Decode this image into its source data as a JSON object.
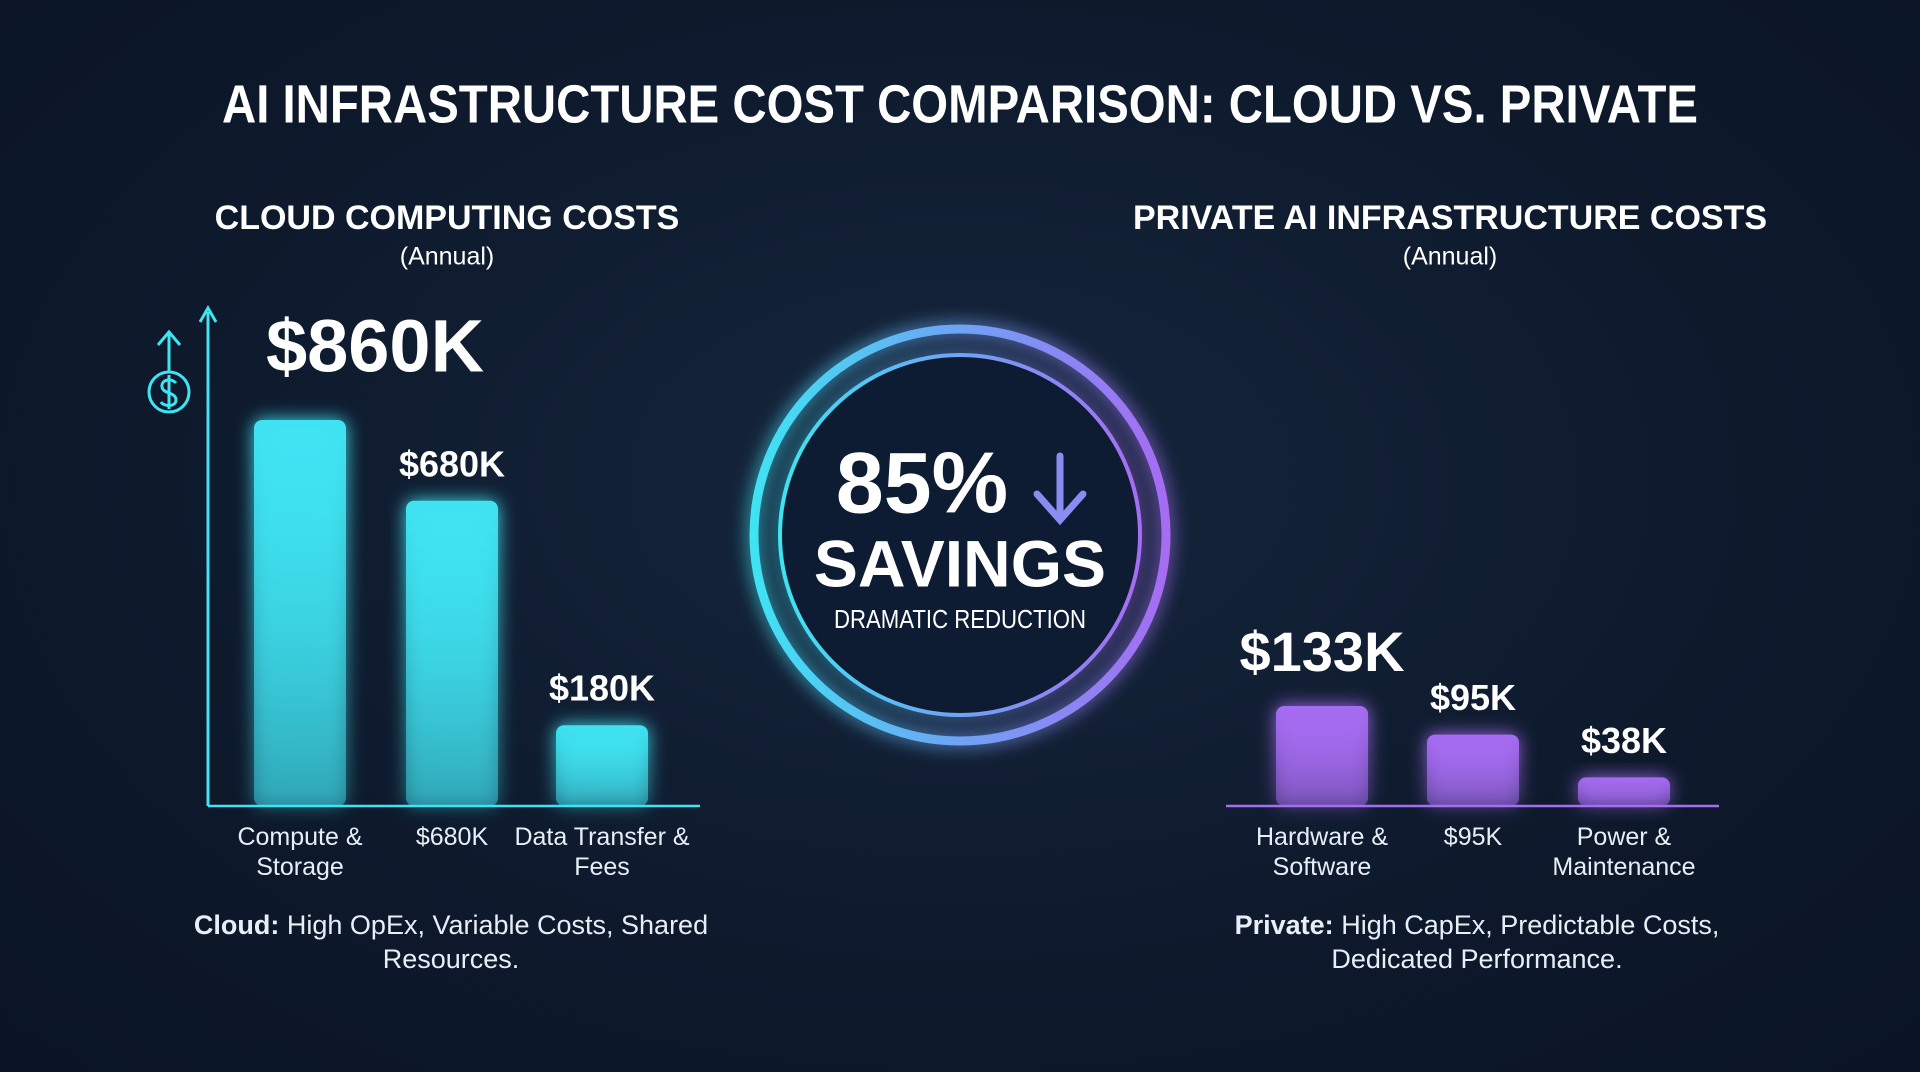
{
  "title": "AI INFRASTRUCTURE COST COMPARISON: CLOUD VS. PRIVATE",
  "badge": {
    "value_label": "85%",
    "headline": "SAVINGS",
    "caption": "DRAMATIC REDUCTION"
  },
  "chart_data": [
    {
      "type": "bar",
      "title": "CLOUD COMPUTING COSTS",
      "subtitle": "(Annual)",
      "categories": [
        "Compute & Storage",
        "$680K",
        "Data Transfer & Fees"
      ],
      "values": [
        860,
        680,
        180
      ],
      "value_labels": [
        "$860K",
        "$680K",
        "$180K"
      ],
      "color": "#3fe3f2",
      "note_label": "Cloud:",
      "note": "High OpEx, Variable Costs, Shared Resources."
    },
    {
      "type": "bar",
      "title": "PRIVATE AI INFRASTRUCTURE COSTS",
      "subtitle": "(Annual)",
      "categories": [
        "Hardware & Software",
        "$95K",
        "Power & Maintenance"
      ],
      "values": [
        133,
        95,
        38
      ],
      "value_labels": [
        "$133K",
        "$95K",
        "$38K"
      ],
      "color": "#a66cf2",
      "note_label": "Private:",
      "note": "High CapEx, Predictable Costs, Dedicated Performance."
    }
  ]
}
